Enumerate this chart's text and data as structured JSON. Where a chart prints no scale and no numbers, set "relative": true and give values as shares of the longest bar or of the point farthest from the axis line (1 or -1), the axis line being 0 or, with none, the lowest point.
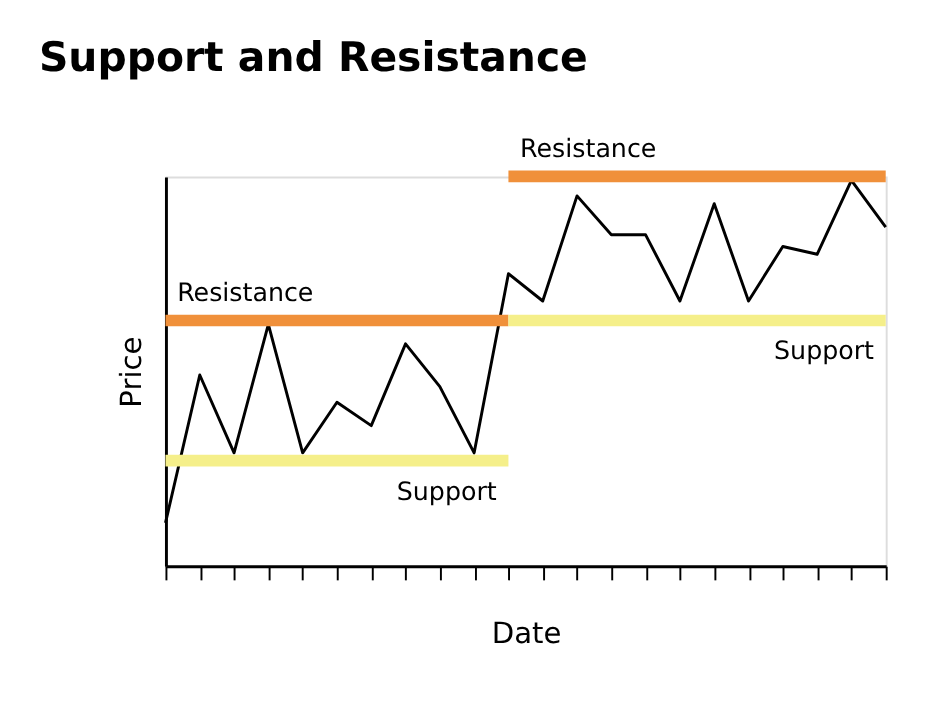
{
  "chart_data": {
    "type": "line",
    "title": "Support and Resistance",
    "xlabel": "Date",
    "ylabel": "Price",
    "relative": true,
    "grid": false,
    "legend": false,
    "marker": "none",
    "line_style": "solid",
    "categories": [
      null,
      null,
      null,
      null,
      null,
      null,
      null,
      null,
      null,
      null,
      null,
      null,
      null,
      null,
      null,
      null,
      null,
      null,
      null,
      null,
      null,
      null
    ],
    "series": [
      {
        "color": "#000000",
        "values": [
          0.11,
          0.49,
          0.29,
          0.62,
          0.29,
          0.42,
          0.36,
          0.57,
          0.46,
          0.29,
          0.75,
          0.68,
          0.95,
          0.85,
          0.85,
          0.68,
          0.93,
          0.68,
          0.82,
          0.8,
          0.99,
          0.87
        ]
      },
      {
        "name": "Resistance",
        "color": "#f0903a",
        "values": [
          0.63,
          0.63,
          0.63,
          0.63,
          0.63,
          0.63,
          0.63,
          0.63,
          0.63,
          0.63,
          0.63,
          null,
          null,
          null,
          null,
          null,
          null,
          null,
          null,
          null,
          null,
          null
        ]
      },
      {
        "name": "Support",
        "color": "#f5ef8a",
        "values": [
          0.27,
          0.27,
          0.27,
          0.27,
          0.27,
          0.27,
          0.27,
          0.27,
          0.27,
          0.27,
          0.27,
          null,
          null,
          null,
          null,
          null,
          null,
          null,
          null,
          null,
          null,
          null
        ]
      },
      {
        "name": "Resistance",
        "color": "#f0903a",
        "values": [
          null,
          null,
          null,
          null,
          null,
          null,
          null,
          null,
          null,
          null,
          1.0,
          1.0,
          1.0,
          1.0,
          1.0,
          1.0,
          1.0,
          1.0,
          1.0,
          1.0,
          1.0,
          1.0
        ]
      },
      {
        "name": "Support",
        "color": "#f5ef8a",
        "values": [
          null,
          null,
          null,
          null,
          null,
          null,
          null,
          null,
          null,
          null,
          0.63,
          0.63,
          0.63,
          0.63,
          0.63,
          0.63,
          0.63,
          0.63,
          0.63,
          0.63,
          0.63,
          0.63
        ]
      }
    ]
  }
}
